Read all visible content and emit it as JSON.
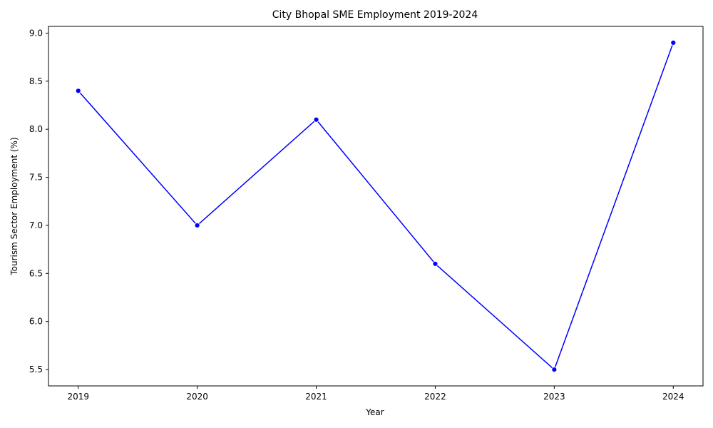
{
  "chart_data": {
    "type": "line",
    "title": "City Bhopal SME Employment 2019-2024",
    "xlabel": "Year",
    "ylabel": "Tourism Sector Employment (%)",
    "x": [
      2019,
      2020,
      2021,
      2022,
      2023,
      2024
    ],
    "xticks": [
      "2019",
      "2020",
      "2021",
      "2022",
      "2023",
      "2024"
    ],
    "yticks": [
      "5.5",
      "6.0",
      "6.5",
      "7.0",
      "7.5",
      "8.0",
      "8.5",
      "9.0"
    ],
    "ylim": [
      5.33,
      9.07
    ],
    "xlim": [
      2018.75,
      2024.25
    ],
    "series": [
      {
        "values": [
          8.4,
          7.0,
          8.1,
          6.6,
          5.5,
          8.9
        ],
        "color": "#0000ff",
        "marker": "circle"
      }
    ],
    "grid": false,
    "legend": "none"
  }
}
